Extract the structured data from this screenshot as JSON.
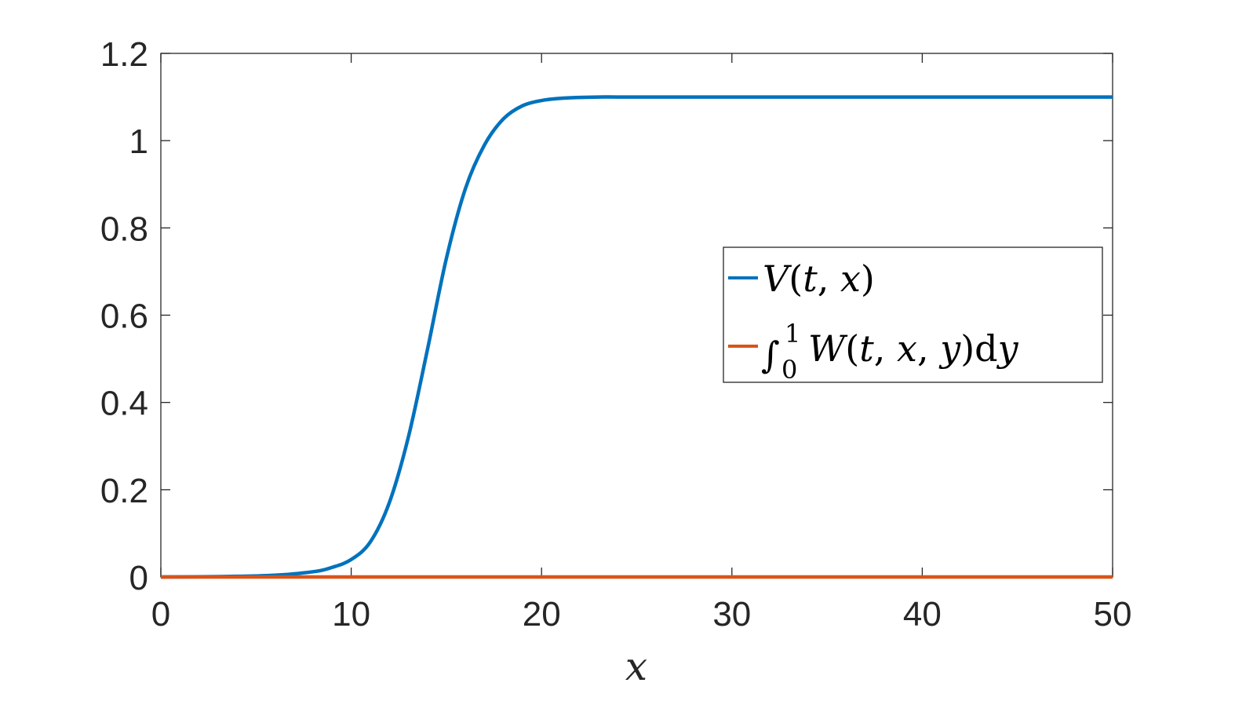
{
  "chart_data": {
    "type": "line",
    "title": "",
    "xlabel": "x",
    "ylabel": "",
    "xlim": [
      0,
      50
    ],
    "ylim": [
      0,
      1.2
    ],
    "x_ticks": [
      "0",
      "10",
      "20",
      "30",
      "40",
      "50"
    ],
    "y_ticks": [
      "0",
      "0.2",
      "0.4",
      "0.6",
      "0.8",
      "1",
      "1.2"
    ],
    "grid": false,
    "legend_position": "right",
    "series": [
      {
        "name": "V(t, x)",
        "color": "#0072BD",
        "x": [
          0,
          2,
          4,
          6,
          8,
          9,
          10,
          11,
          12,
          13,
          14,
          15,
          16,
          17,
          18,
          19,
          20,
          21,
          22,
          23,
          24,
          26,
          30,
          35,
          40,
          45,
          50
        ],
        "y": [
          0,
          0.0005,
          0.0015,
          0.004,
          0.012,
          0.022,
          0.04,
          0.08,
          0.17,
          0.32,
          0.52,
          0.73,
          0.89,
          0.99,
          1.05,
          1.08,
          1.092,
          1.097,
          1.099,
          1.1,
          1.1,
          1.1,
          1.1,
          1.1,
          1.1,
          1.1,
          1.1
        ]
      },
      {
        "name": "∫₀¹ W(t, x, y)dy",
        "color": "#D95319",
        "x": [
          0,
          10,
          20,
          30,
          40,
          50
        ],
        "y": [
          0,
          0,
          0,
          0,
          0,
          0
        ]
      }
    ],
    "legend": {
      "v_label_italic_1": "V",
      "v_label_rest_1": "(",
      "v_label_italic_2": "t",
      "v_label_rest_2": ", ",
      "v_label_italic_3": "x",
      "v_label_rest_3": ")",
      "w_integral": "∫",
      "w_sup": "1",
      "w_sub": "0",
      "w_label_italic_1": "W",
      "w_label_rest_1": "(",
      "w_label_italic_2": "t",
      "w_label_rest_2": ", ",
      "w_label_italic_3": "x",
      "w_label_rest_3": ", ",
      "w_label_italic_4": "y",
      "w_label_rest_4": ")d",
      "w_label_italic_5": "y"
    }
  }
}
